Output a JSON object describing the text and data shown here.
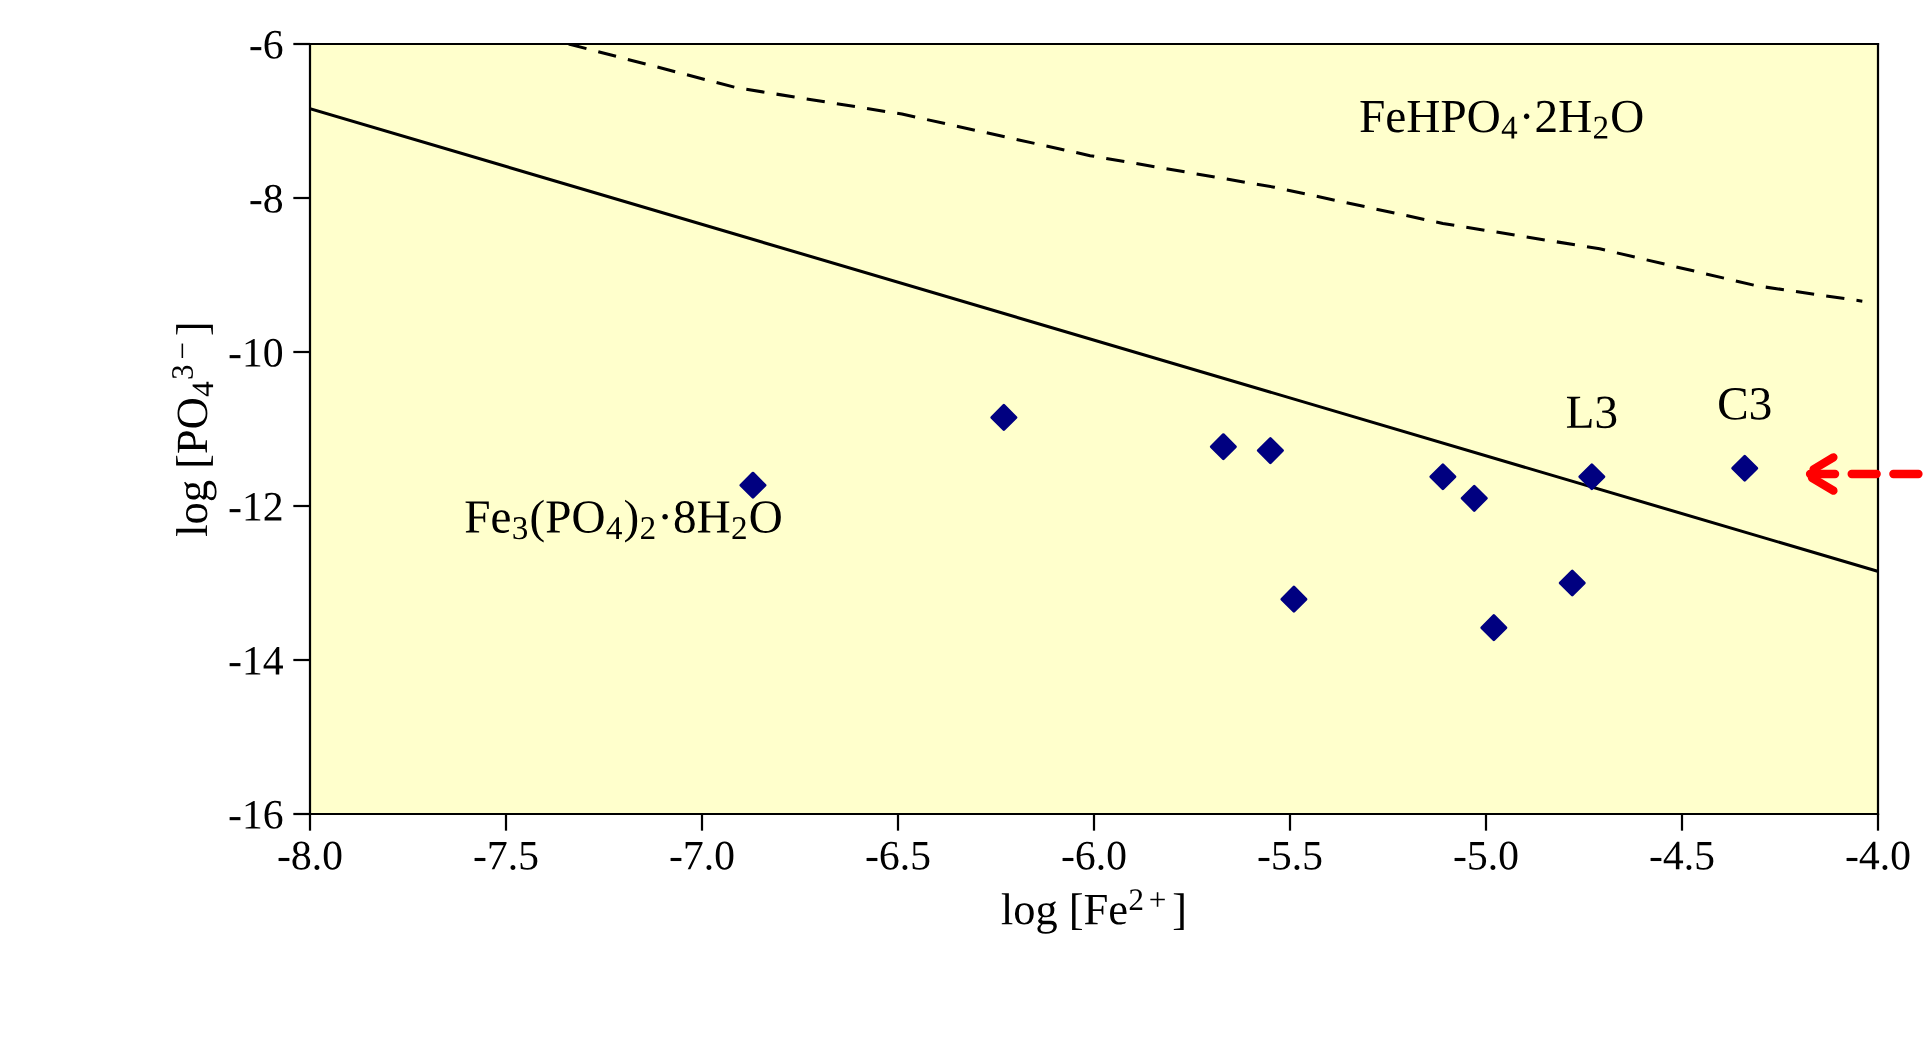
{
  "chart_data": {
    "type": "scatter",
    "xlabel": "log [Fe$^{2+}$]",
    "ylabel": "log [PO$_{4}$$^{3−}$]",
    "xlim": [
      -8,
      -4
    ],
    "ylim": [
      -16,
      -6
    ],
    "xticks": [
      {
        "value": -8,
        "label": "-8.0"
      },
      {
        "value": -7.5,
        "label": "-7.5"
      },
      {
        "value": -7,
        "label": "-7.0"
      },
      {
        "value": -6.5,
        "label": "-6.5"
      },
      {
        "value": -6,
        "label": "-6.0"
      },
      {
        "value": -5.5,
        "label": "-5.5"
      },
      {
        "value": -5,
        "label": "-5.0"
      },
      {
        "value": -4.5,
        "label": "-4.5"
      },
      {
        "value": -4,
        "label": "-4.0"
      }
    ],
    "yticks": [
      -16,
      -14,
      -12,
      -10,
      -8,
      -6
    ],
    "grid": false,
    "legend": false,
    "marker": "diamond",
    "x": [
      -6.87,
      -6.23,
      -5.67,
      -5.55,
      -5.49,
      -5.11,
      -5.03,
      -4.98,
      -4.78,
      -4.73,
      -4.34
    ],
    "series": [
      {
        "color": "#000080",
        "values": [
          -11.73,
          -10.85,
          -11.23,
          -11.28,
          -13.21,
          -11.62,
          -11.9,
          -13.58,
          -13.0,
          -11.62,
          -11.51
        ]
      },
      {
        "type": "line",
        "color": "#000000",
        "line_style": "solid",
        "marker": "none",
        "x": [
          -8,
          -4
        ],
        "values": [
          -6.84,
          -12.85
        ]
      },
      {
        "type": "line",
        "color": "#000000",
        "line_style": "dashed",
        "marker": "none",
        "x": [
          -7.34,
          -6.91,
          -6.49,
          -6.01,
          -5.54,
          -5.11,
          -4.71,
          -4.31,
          -4.04
        ],
        "values": [
          -6.0,
          -6.57,
          -6.91,
          -7.45,
          -7.86,
          -8.33,
          -8.66,
          -9.14,
          -9.34
        ]
      }
    ],
    "annotations": [
      "Fe$_{3}$(PO$_{4}$)$_{2}$·8H$_{2}$O",
      "FeHPO$_{4}$·2H$_{2}$O",
      {
        "text": "L3",
        "x": -4.73,
        "y": -11.62
      },
      {
        "text": "C3",
        "x": -4.34,
        "y": -11.51
      }
    ]
  }
}
